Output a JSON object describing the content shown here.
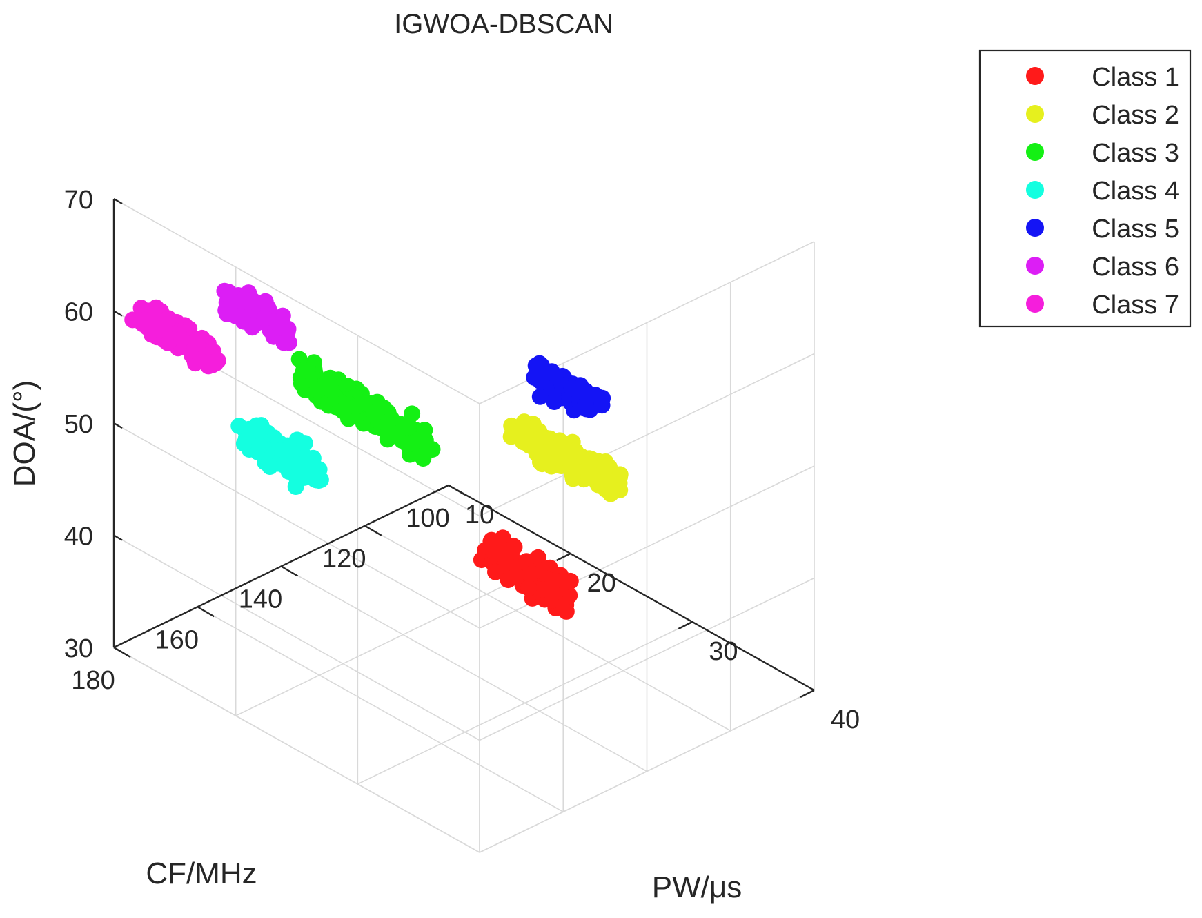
{
  "chart_data": {
    "type": "scatter3d",
    "title": "IGWOA-DBSCAN",
    "xlabel": "PW/μs",
    "ylabel": "CF/MHz",
    "zlabel": "DOA/(°)",
    "xlim": [
      10,
      40
    ],
    "ylim": [
      100,
      180
    ],
    "zlim": [
      30,
      70
    ],
    "xticks": [
      10,
      20,
      30,
      40
    ],
    "yticks": [
      100,
      120,
      140,
      160,
      180
    ],
    "zticks": [
      30,
      40,
      50,
      60,
      70
    ],
    "grid": true,
    "legend_position": "top-right",
    "series": [
      {
        "name": "Class 1",
        "color": "#ff1a1a",
        "center": [
          20,
          110,
          30
        ],
        "spread": [
          3.2,
          3.0,
          1.2
        ],
        "count": 130
      },
      {
        "name": "Class 2",
        "color": "#e6f01e",
        "center": [
          30,
          130,
          50
        ],
        "spread": [
          4.0,
          3.0,
          1.2
        ],
        "count": 120
      },
      {
        "name": "Class 3",
        "color": "#14f014",
        "center": [
          20,
          150,
          52
        ],
        "spread": [
          5.0,
          3.0,
          1.2
        ],
        "count": 170
      },
      {
        "name": "Class 4",
        "color": "#14ffe0",
        "center": [
          10,
          140,
          40
        ],
        "spread": [
          3.0,
          3.0,
          1.2
        ],
        "count": 110
      },
      {
        "name": "Class 5",
        "color": "#1414f5",
        "center": [
          30,
          130,
          56
        ],
        "spread": [
          2.2,
          3.0,
          1.2
        ],
        "count": 80
      },
      {
        "name": "Class 6",
        "color": "#dc1ef5",
        "center": [
          20,
          175,
          65
        ],
        "spread": [
          2.5,
          3.0,
          1.2
        ],
        "count": 80
      },
      {
        "name": "Class 7",
        "color": "#f51edc",
        "center": [
          10,
          165,
          55
        ],
        "spread": [
          3.0,
          3.0,
          1.2
        ],
        "count": 120
      }
    ]
  }
}
